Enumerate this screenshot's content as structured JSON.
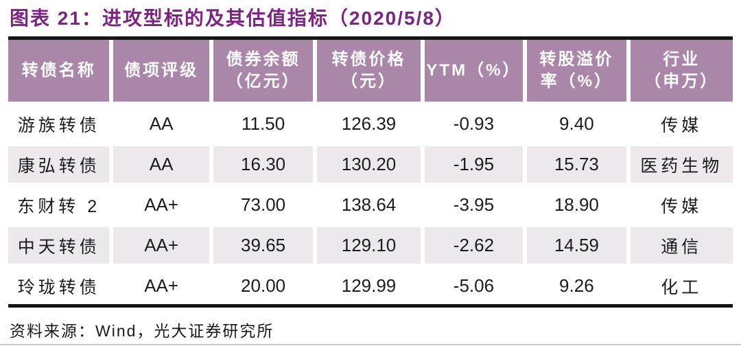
{
  "title": "图表 21：进攻型标的及其估值指标（2020/5/8）",
  "table": {
    "headers": [
      "转债名称",
      "债项评级",
      "债券余额\n（亿元）",
      "转债价格\n（元）",
      "YTM（%）",
      "转股溢价\n率（%）",
      "行业\n（申万）"
    ],
    "rows": [
      [
        "游族转债",
        "AA",
        "11.50",
        "126.39",
        "-0.93",
        "9.40",
        "传媒"
      ],
      [
        "康弘转债",
        "AA",
        "16.30",
        "130.20",
        "-1.95",
        "15.73",
        "医药生物"
      ],
      [
        "东财转 2",
        "AA+",
        "73.00",
        "138.64",
        "-3.95",
        "18.90",
        "传媒"
      ],
      [
        "中天转债",
        "AA+",
        "39.65",
        "129.10",
        "-2.62",
        "14.59",
        "通信"
      ],
      [
        "玲珑转债",
        "AA+",
        "20.00",
        "129.99",
        "-5.06",
        "9.26",
        "化工"
      ]
    ]
  },
  "footer": {
    "source": "资料来源：Wind，光大证券研究所"
  },
  "colors": {
    "title_text": "#7C2383",
    "header_bg": "#AA86A8",
    "header_text": "#FFFFFF",
    "row_alt_bg": "#ECE8EB",
    "row_bg": "#FFFFFF",
    "rule_dark": "#151515",
    "rule_light": "#C9C9C9",
    "body_text": "#1C1C1C"
  },
  "chart_data": {
    "type": "table",
    "title": "图表 21：进攻型标的及其估值指标（2020/5/8）",
    "columns": [
      "转债名称",
      "债项评级",
      "债券余额（亿元）",
      "转债价格（元）",
      "YTM（%）",
      "转股溢价率（%）",
      "行业（申万）"
    ],
    "rows": [
      [
        "游族转债",
        "AA",
        11.5,
        126.39,
        -0.93,
        9.4,
        "传媒"
      ],
      [
        "康弘转债",
        "AA",
        16.3,
        130.2,
        -1.95,
        15.73,
        "医药生物"
      ],
      [
        "东财转 2",
        "AA+",
        73.0,
        138.64,
        -3.95,
        18.9,
        "传媒"
      ],
      [
        "中天转债",
        "AA+",
        39.65,
        129.1,
        -2.62,
        14.59,
        "通信"
      ],
      [
        "玲珑转债",
        "AA+",
        20.0,
        129.99,
        -5.06,
        9.26,
        "化工"
      ]
    ],
    "source": "资料来源：Wind，光大证券研究所"
  }
}
